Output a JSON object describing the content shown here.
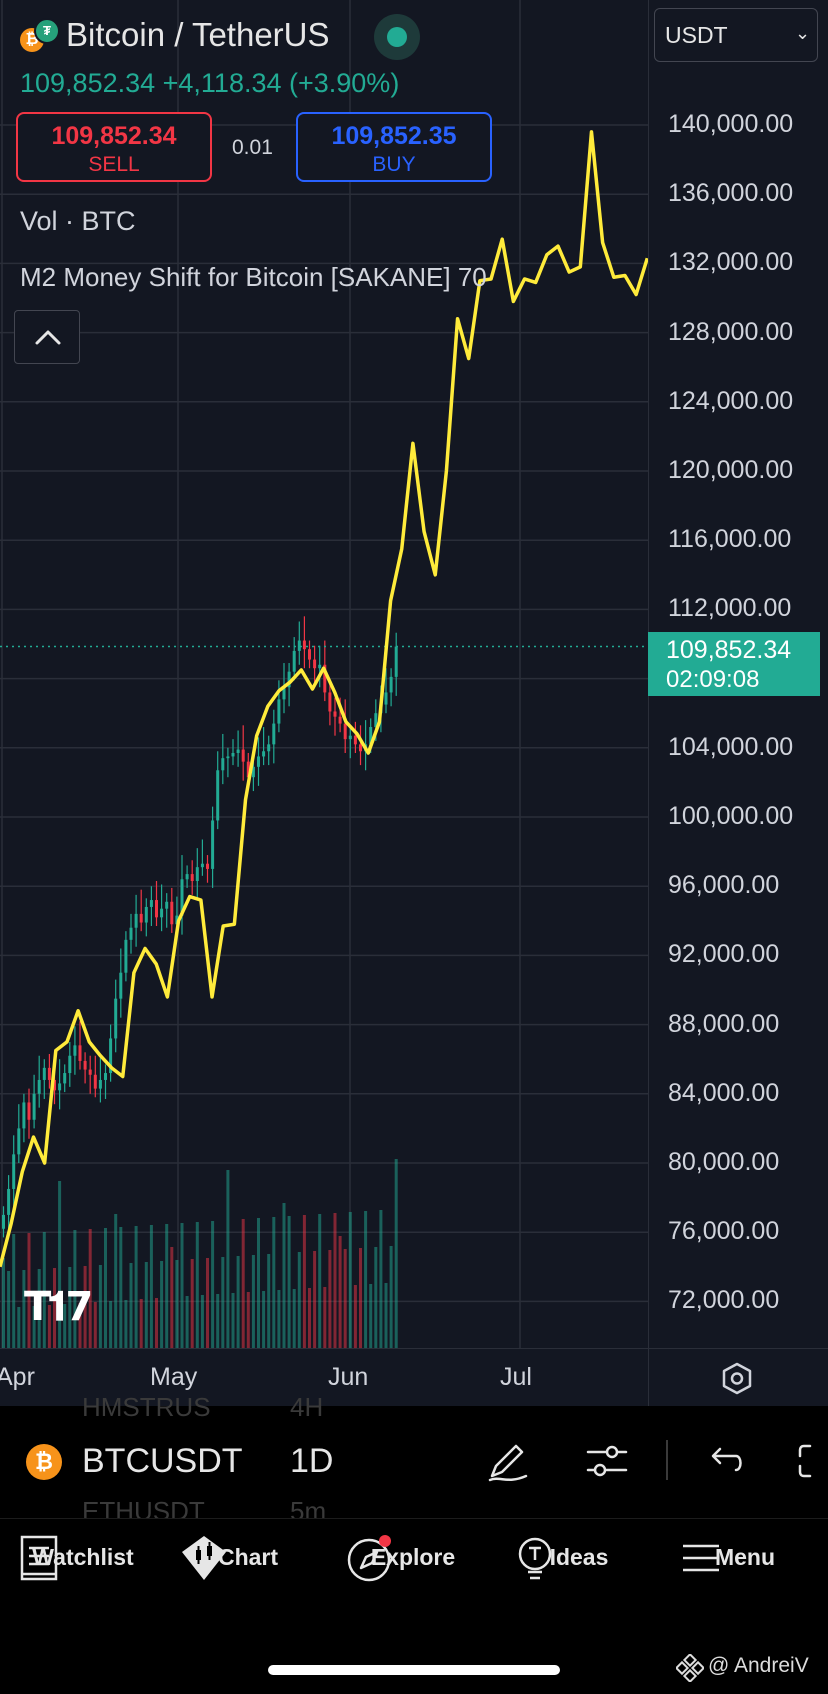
{
  "header": {
    "title": "Bitcoin / TetherUS",
    "price_change": "109,852.34 +4,118.34 (+3.90%)",
    "currency": "USDT",
    "sell": {
      "price": "109,852.34",
      "label": "SELL"
    },
    "buy": {
      "price": "109,852.35",
      "label": "BUY"
    },
    "spread": "0.01",
    "vol_label": "Vol · BTC",
    "indicator_label": "M2 Money Shift for Bitcoin [SAKANE] 70"
  },
  "current_price_tag": {
    "price": "109,852.34",
    "countdown": "02:09:08"
  },
  "price_ticks": [
    "140,000.00",
    "136,000.00",
    "132,000.00",
    "128,000.00",
    "124,000.00",
    "120,000.00",
    "116,000.00",
    "112,000.00",
    "104,000.00",
    "100,000.00",
    "96,000.00",
    "92,000.00",
    "88,000.00",
    "84,000.00",
    "80,000.00",
    "76,000.00",
    "72,000.00"
  ],
  "time_ticks": [
    "Apr",
    "May",
    "Jun",
    "Jul"
  ],
  "toolbar": {
    "symbol": "BTCUSDT",
    "interval": "1D",
    "ghost_top_symbol": "HMSTRUS",
    "ghost_top_interval": "4H",
    "ghost_bottom_symbol": "ETHUSDT",
    "ghost_bottom_interval": "5m"
  },
  "nav": [
    {
      "label": "Watchlist",
      "icon": "watchlist-icon"
    },
    {
      "label": "Chart",
      "icon": "chart-icon"
    },
    {
      "label": "Explore",
      "icon": "explore-icon"
    },
    {
      "label": "Ideas",
      "icon": "ideas-icon"
    },
    {
      "label": "Menu",
      "icon": "menu-icon"
    }
  ],
  "watermark": "@ AndreiV",
  "colors": {
    "background": "#131722",
    "up": "#22ab94",
    "down": "#f23645",
    "indicator": "#ffeb3b",
    "buy": "#2962ff"
  },
  "chart_data": {
    "type": "candlestick+line",
    "title": "Bitcoin / TetherUS",
    "ylim": [
      69000,
      142000
    ],
    "current_price": 109852.34,
    "candles_close": [
      77000,
      78500,
      80500,
      82000,
      83500,
      82500,
      84000,
      84800,
      85500,
      84800,
      84200,
      84600,
      85200,
      86200,
      86800,
      85900,
      85400,
      85100,
      84300,
      84800,
      85200,
      87200,
      89500,
      91000,
      92900,
      93600,
      94400,
      93900,
      94800,
      95200,
      94200,
      94700,
      95100,
      93800,
      94300,
      96400,
      96700,
      96300,
      97100,
      97300,
      97000,
      99800,
      102700,
      103400,
      103500,
      103700,
      103900,
      103200,
      102300,
      102900,
      103500,
      103800,
      104200,
      105400,
      106800,
      107500,
      108400,
      109600,
      110200,
      109700,
      109100,
      108600,
      108800,
      107200,
      106100,
      105800,
      105400,
      104500,
      104700,
      104200,
      103800,
      104200,
      105200,
      106000,
      106500,
      107200,
      108100,
      109852
    ],
    "m2_line": {
      "name": "M2 Money Shift for Bitcoin [SAKANE]",
      "x": [
        0,
        3,
        6,
        9,
        12,
        15,
        18,
        21,
        24,
        27,
        30,
        33,
        36,
        39,
        42,
        45,
        48,
        51,
        54,
        57,
        60,
        63,
        66,
        69,
        72,
        75,
        78,
        81,
        84,
        87,
        90,
        93,
        96,
        99,
        102,
        105,
        108,
        111,
        114,
        117,
        120,
        123,
        126,
        129,
        132,
        135,
        138,
        141,
        144,
        147,
        150,
        153,
        156,
        159,
        162,
        165,
        168,
        171,
        174
      ],
      "y": [
        74000,
        76500,
        79500,
        81500,
        80000,
        86500,
        87000,
        88800,
        87000,
        86200,
        85500,
        85000,
        91000,
        92400,
        91500,
        89600,
        94000,
        95400,
        95200,
        89600,
        93700,
        93800,
        101000,
        104700,
        106400,
        107300,
        107800,
        108500,
        107400,
        108600,
        107200,
        105500,
        104800,
        103700,
        105500,
        112500,
        115500,
        121600,
        116500,
        114000,
        120000,
        128800,
        126500,
        131000,
        131100,
        133400,
        129800,
        131100,
        130900,
        132500,
        133000,
        131500,
        131800,
        139600,
        133200,
        131200,
        131300,
        130200,
        132300
      ]
    }
  }
}
